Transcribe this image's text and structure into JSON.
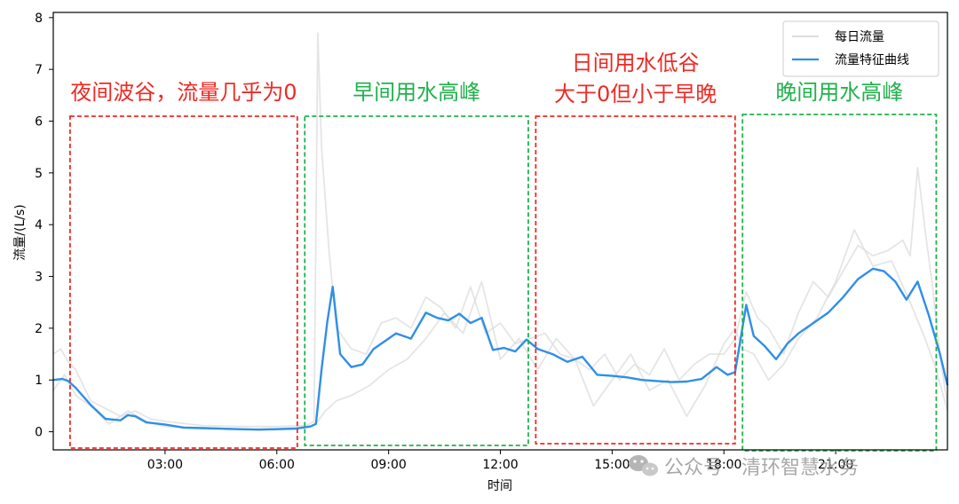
{
  "chart_data": {
    "type": "line",
    "xlabel": "时间",
    "ylabel": "流量/(L/s)",
    "xlim": [
      0,
      24
    ],
    "ylim": [
      -0.35,
      8.1
    ],
    "x_ticks": [
      3,
      6,
      9,
      12,
      15,
      18,
      21
    ],
    "x_tick_labels": [
      "03:00",
      "06:00",
      "09:00",
      "12:00",
      "15:00",
      "18:00",
      "21:00"
    ],
    "y_ticks": [
      0,
      1,
      2,
      3,
      4,
      5,
      6,
      7,
      8
    ],
    "y_tick_labels": [
      "0",
      "1",
      "2",
      "3",
      "4",
      "5",
      "6",
      "7",
      "8"
    ],
    "legend": {
      "placement": "top-right",
      "entries": [
        "每日流量",
        "流量特征曲线"
      ]
    },
    "series": [
      {
        "name": "流量特征曲线",
        "color": "#2f8fe8",
        "x": [
          0,
          0.25,
          0.4,
          0.6,
          1.0,
          1.4,
          1.8,
          2.0,
          2.2,
          2.5,
          3.0,
          3.5,
          4.0,
          4.5,
          5.0,
          5.5,
          6.0,
          6.5,
          6.9,
          7.05,
          7.2,
          7.35,
          7.5,
          7.7,
          8.0,
          8.3,
          8.6,
          8.9,
          9.2,
          9.6,
          10.0,
          10.3,
          10.6,
          10.9,
          11.2,
          11.5,
          11.8,
          12.1,
          12.4,
          12.7,
          13.0,
          13.4,
          13.8,
          14.2,
          14.6,
          15.0,
          15.4,
          15.8,
          16.2,
          16.6,
          17.0,
          17.4,
          17.8,
          18.1,
          18.3,
          18.6,
          18.8,
          19.1,
          19.4,
          19.7,
          20.0,
          20.4,
          20.8,
          21.2,
          21.6,
          22.0,
          22.3,
          22.6,
          22.9,
          23.2,
          23.5,
          23.8,
          24.0
        ],
        "y": [
          1.0,
          1.02,
          0.98,
          0.85,
          0.52,
          0.25,
          0.22,
          0.32,
          0.3,
          0.18,
          0.14,
          0.08,
          0.07,
          0.06,
          0.05,
          0.04,
          0.05,
          0.06,
          0.1,
          0.15,
          1.2,
          2.1,
          2.8,
          1.5,
          1.25,
          1.3,
          1.6,
          1.75,
          1.9,
          1.8,
          2.3,
          2.2,
          2.15,
          2.28,
          2.1,
          2.2,
          1.58,
          1.62,
          1.55,
          1.78,
          1.6,
          1.5,
          1.35,
          1.45,
          1.1,
          1.08,
          1.05,
          1.0,
          0.98,
          0.96,
          0.97,
          1.02,
          1.25,
          1.1,
          1.15,
          2.45,
          1.85,
          1.65,
          1.4,
          1.7,
          1.9,
          2.1,
          2.3,
          2.6,
          2.95,
          3.15,
          3.1,
          2.9,
          2.55,
          2.9,
          2.25,
          1.5,
          0.9
        ]
      },
      {
        "name": "每日流量",
        "color": "#dcdcdc",
        "x": [
          0,
          0.2,
          0.4,
          0.6,
          0.8,
          1.0,
          1.4,
          1.8,
          2.2,
          2.6,
          3.0,
          4.0,
          5.0,
          6.0,
          6.8,
          7.0,
          7.1,
          7.2,
          7.4,
          7.6,
          8.0,
          8.4,
          8.8,
          9.2,
          9.6,
          10.0,
          10.4,
          10.8,
          11.2,
          11.6,
          12.0,
          12.4,
          12.8,
          13.2,
          13.6,
          14.0,
          14.4,
          14.8,
          15.2,
          15.6,
          16.0,
          16.4,
          16.8,
          17.2,
          17.6,
          18.0,
          18.3,
          18.6,
          18.9,
          19.2,
          19.6,
          20.0,
          20.4,
          20.8,
          21.2,
          21.6,
          22.0,
          22.4,
          22.8,
          23.0,
          23.2,
          23.4,
          23.6,
          23.8,
          24.0
        ],
        "y": [
          1.5,
          1.6,
          1.35,
          1.2,
          0.9,
          0.6,
          0.45,
          0.3,
          0.4,
          0.25,
          0.2,
          0.12,
          0.1,
          0.1,
          0.12,
          0.2,
          7.7,
          5.5,
          3.5,
          2.0,
          1.6,
          1.5,
          2.1,
          2.2,
          2.0,
          2.6,
          2.4,
          2.0,
          2.8,
          1.9,
          2.1,
          1.7,
          1.8,
          1.9,
          1.5,
          1.4,
          1.2,
          1.5,
          1.0,
          1.3,
          1.1,
          1.6,
          1.0,
          1.3,
          1.5,
          1.5,
          1.8,
          2.7,
          2.2,
          2.0,
          1.5,
          2.3,
          2.9,
          2.6,
          3.1,
          3.6,
          3.4,
          3.5,
          3.7,
          3.4,
          5.1,
          3.9,
          2.8,
          1.5,
          0.5
        ]
      },
      {
        "name": "每日流量",
        "color": "#dcdcdc",
        "x": [
          0,
          0.3,
          0.6,
          1.0,
          1.5,
          2.0,
          2.5,
          3.0,
          4.0,
          5.0,
          6.0,
          6.9,
          7.1,
          7.3,
          7.6,
          8.0,
          8.5,
          9.0,
          9.5,
          10.0,
          10.5,
          11.0,
          11.5,
          12.0,
          12.5,
          13.0,
          13.5,
          14.0,
          14.5,
          15.0,
          15.5,
          16.0,
          16.5,
          17.0,
          17.5,
          18.0,
          18.3,
          18.5,
          18.8,
          19.2,
          19.6,
          20.0,
          20.5,
          21.0,
          21.5,
          22.0,
          22.5,
          23.0,
          23.4,
          23.7,
          24.0
        ],
        "y": [
          0.8,
          1.1,
          0.7,
          0.5,
          0.15,
          0.4,
          0.2,
          0.1,
          0.08,
          0.05,
          0.06,
          0.1,
          0.2,
          0.4,
          0.6,
          0.7,
          0.9,
          1.2,
          1.4,
          1.8,
          2.3,
          1.9,
          2.9,
          1.4,
          1.8,
          1.2,
          1.8,
          1.4,
          0.5,
          1.0,
          1.5,
          0.8,
          1.0,
          0.3,
          0.9,
          1.7,
          2.0,
          1.6,
          1.5,
          1.0,
          1.3,
          1.8,
          2.2,
          2.9,
          3.9,
          3.2,
          3.3,
          2.5,
          1.8,
          1.2,
          0.4
        ]
      }
    ],
    "annotations": [
      {
        "lines": [
          "夜间波谷，流量几乎为0"
        ],
        "color": "#ee2a24",
        "box_color": "#ee2a24",
        "x_range": [
          0.45,
          6.55
        ]
      },
      {
        "lines": [
          "早间用水高峰"
        ],
        "color": "#22b14c",
        "box_color": "#22b14c",
        "x_range": [
          6.75,
          12.75
        ]
      },
      {
        "lines": [
          "日间用水低谷",
          "大于0但小于早晚"
        ],
        "color": "#ee2a24",
        "box_color": "#ee2a24",
        "x_range": [
          12.95,
          18.3
        ]
      },
      {
        "lines": [
          "晚间用水高峰"
        ],
        "color": "#22b14c",
        "box_color": "#22b14c",
        "x_range": [
          18.5,
          23.7
        ]
      }
    ]
  },
  "watermark": {
    "text": "公众号 · 清环智慧水务",
    "icon": "wechat-icon"
  }
}
